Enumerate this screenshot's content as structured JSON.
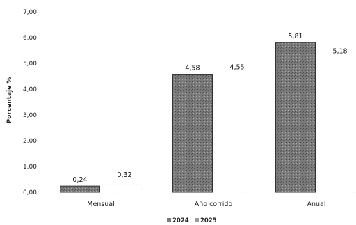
{
  "chart_data": {
    "type": "bar",
    "categories": [
      "Mensual",
      "Año corrido",
      "Anual"
    ],
    "series": [
      {
        "name": "2024",
        "values": [
          0.24,
          4.58,
          5.81
        ],
        "labels": [
          "0,24",
          "4,58",
          "5,81"
        ]
      },
      {
        "name": "2025",
        "values": [
          0.32,
          4.55,
          5.18
        ],
        "labels": [
          "0,32",
          "4,55",
          "5,18"
        ]
      }
    ],
    "ylabel": "Porcentaje %",
    "ylim": [
      0,
      7
    ],
    "yticks": [
      "0,00",
      "1,00",
      "2,00",
      "3,00",
      "4,00",
      "5,00",
      "6,00",
      "7,00"
    ],
    "grid": false,
    "legend_position": "bottom",
    "colors": {
      "2024": "#7a7a7a",
      "2025": "#d9d9d9"
    }
  }
}
